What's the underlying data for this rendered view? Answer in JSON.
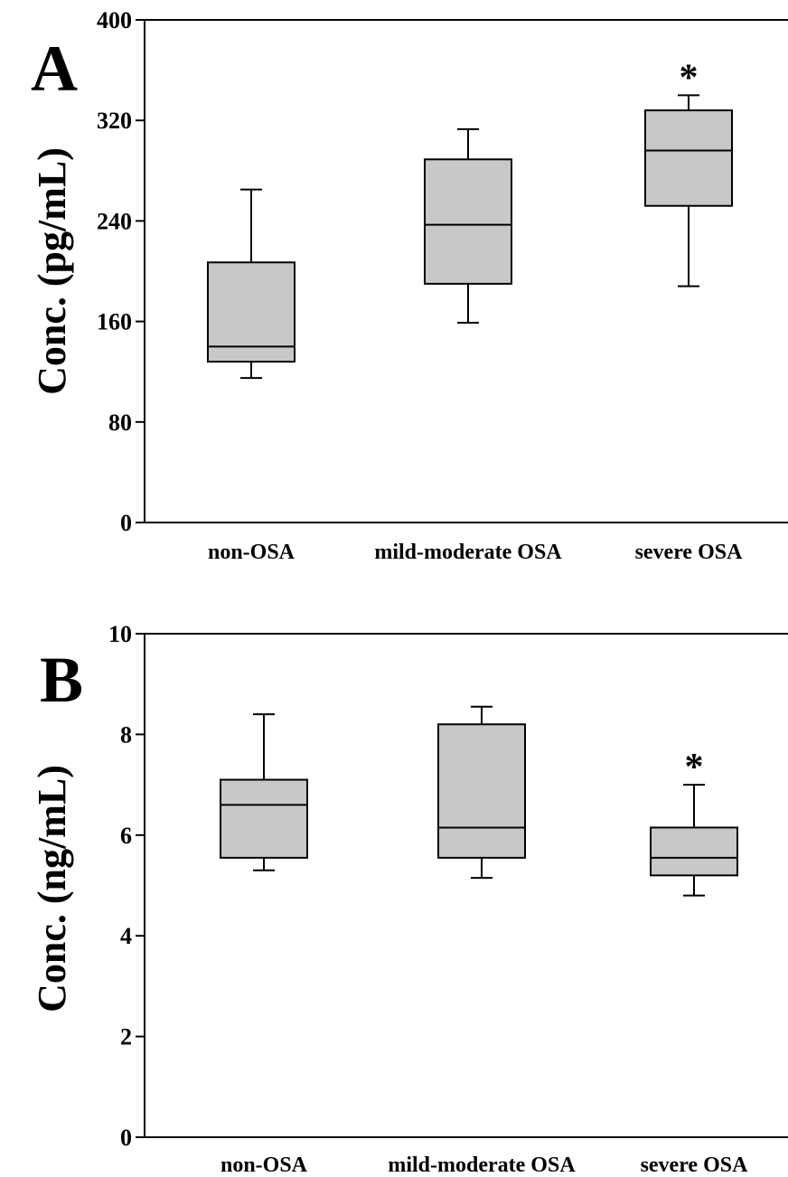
{
  "chart_data": [
    {
      "type": "box",
      "panel_label": "A",
      "ylabel": "Conc. (pg/mL)",
      "ylim": [
        0,
        400
      ],
      "yticks": [
        0,
        80,
        160,
        240,
        320,
        400
      ],
      "categories": [
        "non-OSA",
        "mild-moderate OSA",
        "severe OSA"
      ],
      "boxes": [
        {
          "category": "non-OSA",
          "whisker_low": 115,
          "q1": 128,
          "median": 140,
          "q3": 207,
          "whisker_high": 265,
          "significance": ""
        },
        {
          "category": "mild-moderate OSA",
          "whisker_low": 159,
          "q1": 190,
          "median": 237,
          "q3": 289,
          "whisker_high": 313,
          "significance": ""
        },
        {
          "category": "severe OSA",
          "whisker_low": 188,
          "q1": 252,
          "median": 296,
          "q3": 328,
          "whisker_high": 340,
          "significance": "*"
        }
      ],
      "box_fill": "#c8c8c8",
      "grid": false
    },
    {
      "type": "box",
      "panel_label": "B",
      "ylabel": "Conc. (ng/mL)",
      "ylim": [
        0,
        10
      ],
      "yticks": [
        0,
        2,
        4,
        6,
        8,
        10
      ],
      "categories": [
        "non-OSA",
        "mild-moderate OSA",
        "severe OSA"
      ],
      "boxes": [
        {
          "category": "non-OSA",
          "whisker_low": 5.3,
          "q1": 5.55,
          "median": 6.6,
          "q3": 7.1,
          "whisker_high": 8.4,
          "significance": ""
        },
        {
          "category": "mild-moderate OSA",
          "whisker_low": 5.15,
          "q1": 5.55,
          "median": 6.15,
          "q3": 8.2,
          "whisker_high": 8.55,
          "significance": ""
        },
        {
          "category": "severe OSA",
          "whisker_low": 4.8,
          "q1": 5.2,
          "median": 5.55,
          "q3": 6.15,
          "whisker_high": 7.0,
          "significance": "*"
        }
      ],
      "box_fill": "#c8c8c8",
      "grid": false
    }
  ]
}
